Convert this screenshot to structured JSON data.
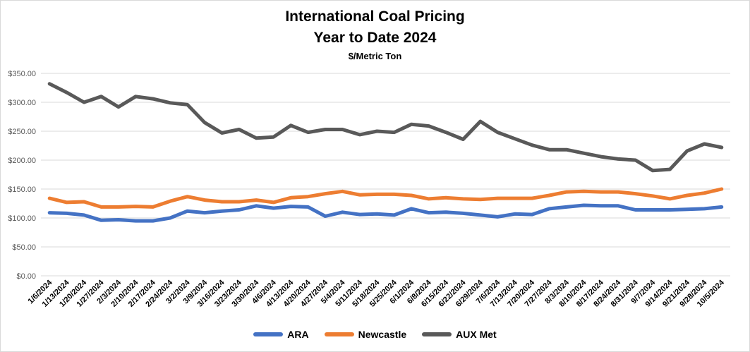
{
  "chart_data": {
    "type": "line",
    "title": "International Coal Pricing",
    "subtitle": "Year to Date 2024",
    "ylabel": "$/Metric Ton",
    "xlabel": "",
    "ylim": [
      0,
      350
    ],
    "yticks": [
      "$0.00",
      "$50.00",
      "$100.00",
      "$150.00",
      "$200.00",
      "$250.00",
      "$300.00",
      "$350.00"
    ],
    "grid": "horizontal",
    "legend_position": "bottom",
    "categories": [
      "1/6/2024",
      "1/13/2024",
      "1/20/2024",
      "1/27/2024",
      "2/3/2024",
      "2/10/2024",
      "2/17/2024",
      "2/24/2024",
      "3/2/2024",
      "3/9/2024",
      "3/16/2024",
      "3/23/2024",
      "3/30/2024",
      "4/6/2024",
      "4/13/2024",
      "4/20/2024",
      "4/27/2024",
      "5/4/2024",
      "5/11/2024",
      "5/18/2024",
      "5/25/2024",
      "6/1/2024",
      "6/8/2024",
      "6/15/2024",
      "6/22/2024",
      "6/29/2024",
      "7/6/2024",
      "7/13/2024",
      "7/20/2024",
      "7/27/2024",
      "8/3/2024",
      "8/10/2024",
      "8/17/2024",
      "8/24/2024",
      "8/31/2024",
      "9/7/2024",
      "9/14/2024",
      "9/21/2024",
      "9/28/2024",
      "10/5/2024"
    ],
    "series": [
      {
        "name": "ARA",
        "color": "#4472c4",
        "values": [
          109,
          108,
          105,
          96,
          97,
          95,
          95,
          100,
          112,
          109,
          112,
          114,
          121,
          117,
          120,
          119,
          103,
          110,
          106,
          107,
          105,
          116,
          109,
          110,
          108,
          105,
          102,
          107,
          106,
          116,
          119,
          122,
          121,
          121,
          114,
          114,
          114,
          115,
          116,
          119
        ]
      },
      {
        "name": "Newcastle",
        "color": "#ed7d31",
        "values": [
          134,
          127,
          128,
          119,
          119,
          120,
          119,
          129,
          137,
          131,
          128,
          128,
          131,
          127,
          135,
          137,
          142,
          146,
          140,
          141,
          141,
          139,
          133,
          135,
          133,
          132,
          134,
          134,
          134,
          139,
          145,
          146,
          145,
          145,
          142,
          138,
          133,
          139,
          143,
          150
        ]
      },
      {
        "name": "AUX Met",
        "color": "#595959",
        "values": [
          332,
          317,
          300,
          310,
          292,
          310,
          306,
          299,
          296,
          265,
          247,
          253,
          238,
          240,
          260,
          248,
          253,
          253,
          244,
          250,
          248,
          262,
          259,
          248,
          236,
          267,
          248,
          237,
          226,
          218,
          218,
          212,
          206,
          202,
          200,
          182,
          184,
          216,
          228,
          222
        ]
      }
    ]
  }
}
